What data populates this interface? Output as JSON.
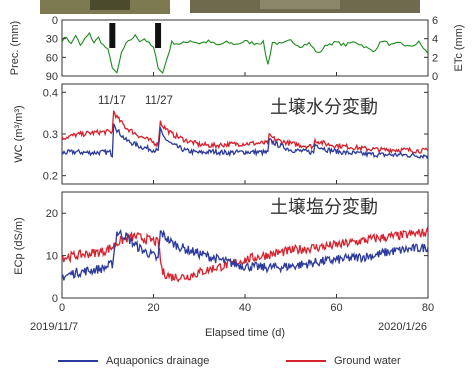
{
  "colors": {
    "drainage": "#2c3a9c",
    "ground": "#d5222c",
    "precip": "#1c8c1c",
    "bars": "#111111"
  },
  "panels": {
    "prec": {
      "ylabel": "Prec. (mm)",
      "y2label": "ETc (mm)",
      "y_ticks": [
        "0",
        "30",
        "60",
        "90"
      ],
      "y2_ticks": [
        "6",
        "4",
        "2",
        "0"
      ]
    },
    "wc": {
      "ylabel": "WC (m³/m³)",
      "annotation": "土壌水分変動",
      "y_ticks": [
        "0.4",
        "0.3",
        "0.2"
      ],
      "date_labels": [
        "11/17",
        "11/27"
      ]
    },
    "ec": {
      "ylabel": "ECp (dS/m)",
      "annotation": "土壌塩分変動",
      "y_ticks": [
        "0",
        "10",
        "20"
      ]
    }
  },
  "x_axis": {
    "ticks": [
      "0",
      "20",
      "40",
      "60",
      "80"
    ],
    "xlabel": "Elapsed time (d)",
    "start_date": "2019/11/7",
    "end_date": "2020/1/26"
  },
  "legend": {
    "drainage": "Aquaponics drainage",
    "ground": "Ground water"
  },
  "chart_data": [
    {
      "type": "line",
      "panel": "prec",
      "xlim": [
        0,
        80
      ],
      "ylim": [
        0,
        90
      ],
      "y2lim": [
        0,
        6
      ],
      "precip_bars": {
        "x": [
          11,
          21
        ],
        "values": [
          45,
          45
        ]
      },
      "series": [
        {
          "axis": "y2",
          "x": [
            0,
            1,
            2,
            3,
            4,
            5,
            6,
            7,
            8,
            9,
            10,
            11,
            12,
            13,
            14,
            15,
            16,
            17,
            18,
            19,
            20,
            21,
            22,
            24,
            26,
            28,
            30,
            32,
            34,
            36,
            38,
            40,
            42,
            44,
            45,
            46,
            48,
            50,
            52,
            54,
            56,
            58,
            60,
            62,
            64,
            66,
            68,
            70,
            72,
            74,
            76,
            78,
            80
          ],
          "values": [
            3.8,
            4.2,
            3.4,
            4.4,
            3.2,
            4.0,
            4.5,
            3.6,
            4.1,
            3.3,
            2.8,
            1.0,
            0.2,
            2.5,
            3.4,
            3.9,
            4.3,
            3.8,
            4.0,
            3.5,
            3.0,
            1.0,
            0.3,
            3.6,
            3.4,
            3.8,
            3.5,
            3.7,
            3.3,
            3.6,
            3.4,
            3.7,
            3.5,
            3.6,
            1.2,
            3.6,
            3.4,
            3.8,
            3.2,
            3.5,
            2.4,
            3.4,
            3.6,
            3.3,
            3.7,
            3.2,
            2.6,
            3.8,
            3.3,
            3.5,
            3.1,
            3.6,
            2.4
          ]
        }
      ]
    },
    {
      "type": "line",
      "panel": "wc",
      "xlim": [
        0,
        80
      ],
      "ylim": [
        0.18,
        0.42
      ],
      "series": [
        {
          "name": "Aquaponics drainage",
          "x": [
            0,
            3,
            6,
            9,
            10.5,
            11,
            11.3,
            12,
            14,
            17,
            20,
            21,
            21.5,
            22,
            24,
            27,
            30,
            33,
            36,
            40,
            44,
            45,
            45.3,
            47,
            50,
            53,
            55,
            55.3,
            58,
            62,
            66,
            70,
            74,
            78,
            80
          ],
          "values": [
            0.255,
            0.257,
            0.255,
            0.256,
            0.256,
            0.25,
            0.33,
            0.31,
            0.285,
            0.27,
            0.262,
            0.258,
            0.31,
            0.295,
            0.275,
            0.26,
            0.255,
            0.258,
            0.255,
            0.257,
            0.256,
            0.255,
            0.285,
            0.275,
            0.262,
            0.258,
            0.256,
            0.275,
            0.262,
            0.255,
            0.252,
            0.25,
            0.25,
            0.248,
            0.248
          ]
        },
        {
          "name": "Ground water",
          "x": [
            0,
            3,
            6,
            9,
            10.5,
            11,
            11.3,
            12,
            14,
            17,
            20,
            21,
            21.5,
            22,
            24,
            27,
            30,
            33,
            36,
            40,
            44,
            45,
            45.3,
            47,
            50,
            53,
            55,
            55.3,
            58,
            62,
            66,
            70,
            74,
            78,
            80
          ],
          "values": [
            0.29,
            0.298,
            0.302,
            0.305,
            0.305,
            0.305,
            0.355,
            0.34,
            0.315,
            0.295,
            0.28,
            0.275,
            0.33,
            0.32,
            0.3,
            0.285,
            0.275,
            0.272,
            0.275,
            0.277,
            0.278,
            0.278,
            0.295,
            0.285,
            0.277,
            0.272,
            0.27,
            0.285,
            0.275,
            0.27,
            0.265,
            0.262,
            0.262,
            0.26,
            0.26
          ]
        }
      ]
    },
    {
      "type": "line",
      "panel": "ec",
      "xlim": [
        0,
        80
      ],
      "ylim": [
        0,
        25
      ],
      "series": [
        {
          "name": "Aquaponics drainage",
          "x": [
            0,
            3,
            6,
            9,
            10,
            11,
            12,
            14,
            16,
            18,
            20,
            21,
            21.5,
            22,
            24,
            27,
            30,
            33,
            36,
            40,
            44,
            48,
            52,
            56,
            60,
            64,
            68,
            72,
            76,
            80
          ],
          "values": [
            5,
            6,
            6.5,
            7,
            7.5,
            8,
            15.5,
            14.5,
            12.5,
            11,
            10,
            9,
            15.5,
            15,
            13,
            11.5,
            10.5,
            9.5,
            8.5,
            7.5,
            7.2,
            7.3,
            7.8,
            8.5,
            9,
            9.5,
            10,
            11,
            11.5,
            12
          ]
        },
        {
          "name": "Ground water",
          "x": [
            0,
            3,
            6,
            9,
            10,
            11,
            12,
            14,
            16,
            18,
            20,
            21,
            21.5,
            22,
            24,
            27,
            30,
            33,
            36,
            40,
            44,
            48,
            52,
            56,
            60,
            64,
            68,
            72,
            76,
            80
          ],
          "values": [
            9.5,
            10,
            10.5,
            11,
            11.5,
            12,
            13,
            14,
            14.5,
            14,
            13.5,
            13,
            9,
            6,
            5,
            5,
            6,
            7,
            7.8,
            9,
            10,
            10.8,
            11.5,
            12,
            12.5,
            13.2,
            14,
            14.5,
            15,
            15.5
          ]
        }
      ]
    }
  ]
}
